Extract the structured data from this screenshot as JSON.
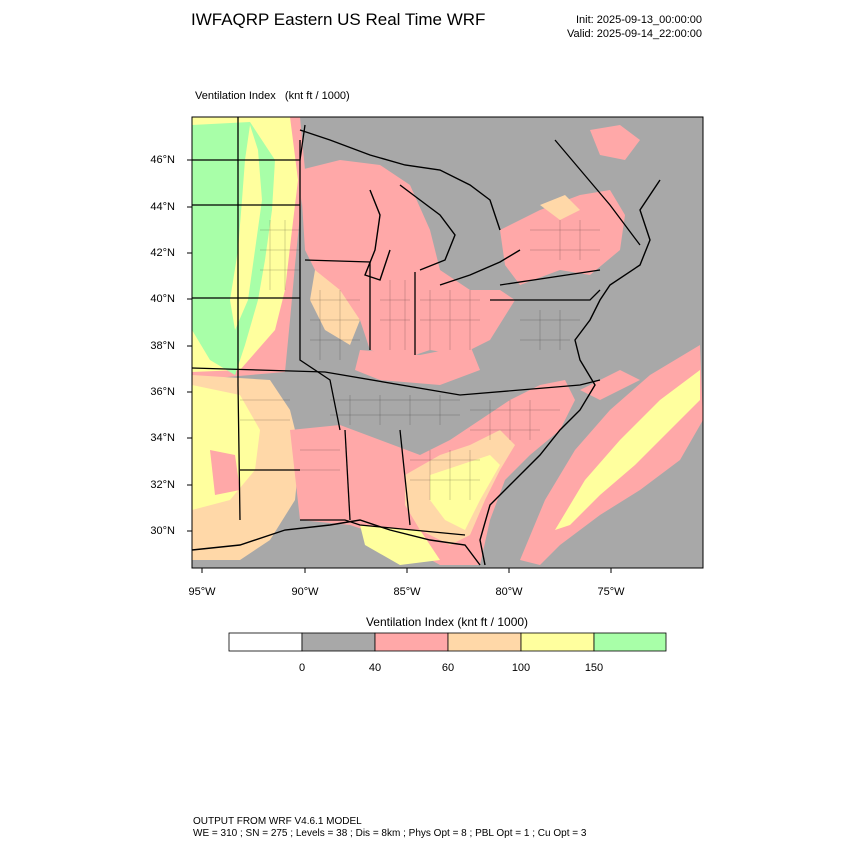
{
  "header": {
    "title": "IWFAQRP Eastern US Real Time WRF",
    "init": "Init: 2025-09-13_00:00:00",
    "valid": "Valid: 2025-09-14_22:00:00"
  },
  "field": {
    "name": "Ventilation Index",
    "units": "(knt ft / 1000)"
  },
  "map": {
    "lat_labels": [
      "46°N",
      "44°N",
      "42°N",
      "40°N",
      "38°N",
      "36°N",
      "34°N",
      "32°N",
      "30°N"
    ],
    "lon_labels": [
      "95°W",
      "90°W",
      "85°W",
      "80°W",
      "75°W"
    ],
    "colors": {
      "water": "#a8a8a8",
      "land_low": "#a8a8a8",
      "band_40_60": "#ffa8a8",
      "band_60_100": "#ffd8a8",
      "band_100_150": "#ffff9e",
      "band_150_plus": "#a8ffa8"
    }
  },
  "colorbar": {
    "title": "Ventilation Index  (knt ft / 1000)",
    "colors": [
      "#ffffff",
      "#a8a8a8",
      "#ffa8a8",
      "#ffd8a8",
      "#ffff9e",
      "#a8ffa8"
    ],
    "labels": [
      "0",
      "40",
      "60",
      "100",
      "150"
    ]
  },
  "footer": {
    "line1": "OUTPUT FROM WRF V4.6.1 MODEL",
    "line2": "WE = 310 ; SN = 275 ; Levels = 38 ; Dis = 8km ; Phys Opt = 8 ; PBL Opt = 1 ; Cu Opt = 3"
  }
}
